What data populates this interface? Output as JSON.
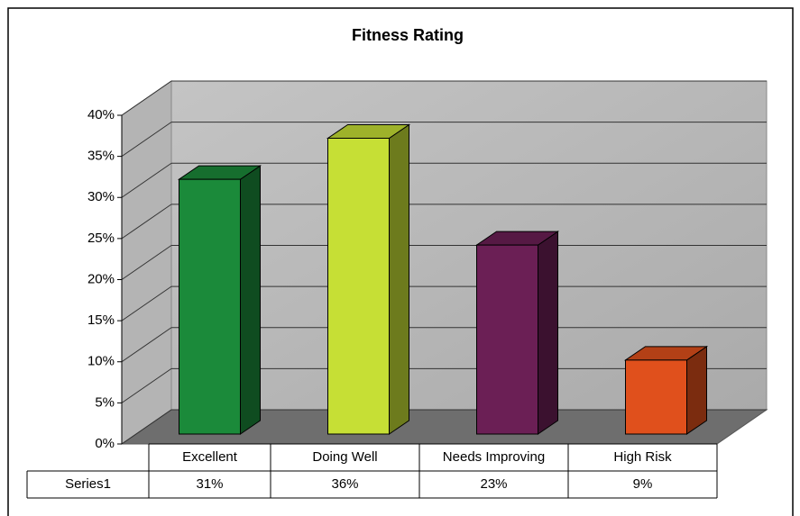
{
  "chart_data": {
    "type": "bar3d",
    "title": "Fitness Rating",
    "categories": [
      "Excellent",
      "Doing Well",
      "Needs Improving",
      "High Risk"
    ],
    "series": [
      {
        "name": "Series1",
        "colors": [
          "#1b8a3a",
          "#c6df35",
          "#6b1f55",
          "#e0501c"
        ],
        "values": [
          31,
          36,
          23,
          9
        ],
        "value_labels": [
          "31%",
          "36%",
          "23%",
          "9%"
        ]
      }
    ],
    "ylim": [
      0,
      40
    ],
    "yticks": [
      {
        "value": 0,
        "label": "0%"
      },
      {
        "value": 5,
        "label": "5%"
      },
      {
        "value": 10,
        "label": "10%"
      },
      {
        "value": 15,
        "label": "15%"
      },
      {
        "value": 20,
        "label": "20%"
      },
      {
        "value": 25,
        "label": "25%"
      },
      {
        "value": 30,
        "label": "30%"
      },
      {
        "value": 35,
        "label": "35%"
      },
      {
        "value": 40,
        "label": "40%"
      }
    ],
    "grid": true
  }
}
